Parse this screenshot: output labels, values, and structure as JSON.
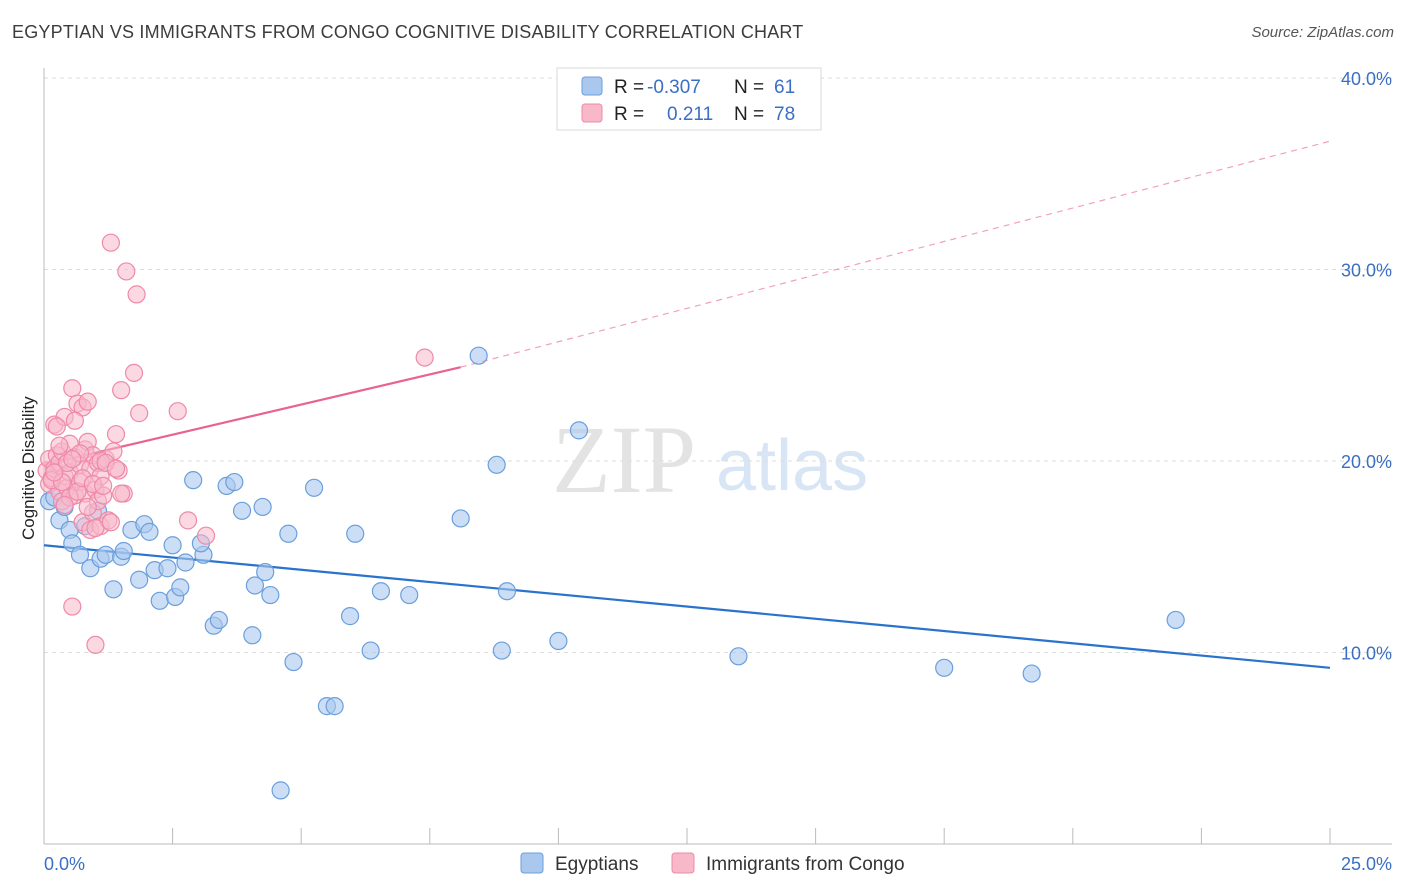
{
  "header": {
    "title": "EGYPTIAN VS IMMIGRANTS FROM CONGO COGNITIVE DISABILITY CORRELATION CHART",
    "source": "Source: ZipAtlas.com"
  },
  "watermark": {
    "zip": "ZIP",
    "atlas": "atlas"
  },
  "legend_box": {
    "rows": [
      {
        "r_label": "R =",
        "r_value": "-0.307",
        "n_label": "N =",
        "n_value": "61"
      },
      {
        "r_label": "R =",
        "r_value": "0.211",
        "n_label": "N =",
        "n_value": "78"
      }
    ]
  },
  "bottom_legend": {
    "items": [
      {
        "label": "Egyptians"
      },
      {
        "label": "Immigrants from Congo"
      }
    ]
  },
  "colors": {
    "blue_fill": "#aac8ee",
    "blue_stroke": "#6a9fdc",
    "blue_line": "#2a73cc",
    "pink_fill": "#f7b8ca",
    "pink_stroke": "#ee8aa8",
    "pink_line": "#e8638e",
    "grid": "#dddddd",
    "axis_label": "#3a6fc4"
  },
  "chart_data": {
    "type": "scatter",
    "title": "EGYPTIAN VS IMMIGRANTS FROM CONGO COGNITIVE DISABILITY CORRELATION CHART",
    "xlabel": "",
    "ylabel": "Cognitive Disability",
    "xlim": [
      0,
      25
    ],
    "ylim": [
      0,
      40
    ],
    "x_tick_labels": [
      "0.0%",
      "25.0%"
    ],
    "y_ticks": [
      10,
      20,
      30,
      40
    ],
    "y_tick_labels": [
      "10.0%",
      "20.0%",
      "30.0%",
      "40.0%"
    ],
    "grid": true,
    "legend_position": "top-center",
    "series": [
      {
        "name": "Egyptians",
        "color": "#6a9fdc",
        "R": -0.307,
        "N": 61,
        "trend": {
          "x": [
            0,
            25
          ],
          "y": [
            15.6,
            9.2
          ],
          "dashed_extension": null
        },
        "points": [
          [
            0.1,
            17.9
          ],
          [
            0.2,
            18.1
          ],
          [
            0.3,
            16.9
          ],
          [
            0.4,
            17.6
          ],
          [
            0.5,
            16.4
          ],
          [
            0.55,
            15.7
          ],
          [
            0.7,
            15.1
          ],
          [
            0.8,
            16.6
          ],
          [
            0.9,
            14.4
          ],
          [
            1.05,
            17.4
          ],
          [
            1.1,
            14.9
          ],
          [
            1.2,
            15.1
          ],
          [
            1.35,
            13.3
          ],
          [
            1.5,
            15.0
          ],
          [
            1.55,
            15.3
          ],
          [
            1.7,
            16.4
          ],
          [
            1.85,
            13.8
          ],
          [
            1.95,
            16.7
          ],
          [
            2.05,
            16.3
          ],
          [
            2.15,
            14.3
          ],
          [
            2.25,
            12.7
          ],
          [
            2.4,
            14.4
          ],
          [
            2.5,
            15.6
          ],
          [
            2.55,
            12.9
          ],
          [
            2.65,
            13.4
          ],
          [
            2.75,
            14.7
          ],
          [
            2.9,
            19.0
          ],
          [
            3.1,
            15.1
          ],
          [
            3.05,
            15.7
          ],
          [
            3.3,
            11.4
          ],
          [
            3.4,
            11.7
          ],
          [
            3.55,
            18.7
          ],
          [
            3.7,
            18.9
          ],
          [
            3.85,
            17.4
          ],
          [
            4.05,
            10.9
          ],
          [
            4.1,
            13.5
          ],
          [
            4.25,
            17.6
          ],
          [
            4.3,
            14.2
          ],
          [
            4.4,
            13.0
          ],
          [
            4.6,
            2.8
          ],
          [
            4.75,
            16.2
          ],
          [
            4.85,
            9.5
          ],
          [
            5.25,
            18.6
          ],
          [
            5.5,
            7.2
          ],
          [
            5.65,
            7.2
          ],
          [
            5.95,
            11.9
          ],
          [
            6.05,
            16.2
          ],
          [
            6.35,
            10.1
          ],
          [
            6.55,
            13.2
          ],
          [
            7.1,
            13.0
          ],
          [
            8.1,
            17.0
          ],
          [
            8.45,
            25.5
          ],
          [
            8.8,
            19.8
          ],
          [
            8.9,
            10.1
          ],
          [
            9.0,
            13.2
          ],
          [
            10.0,
            10.6
          ],
          [
            10.4,
            21.6
          ],
          [
            13.5,
            9.8
          ],
          [
            17.5,
            9.2
          ],
          [
            19.2,
            8.9
          ],
          [
            22.0,
            11.7
          ]
        ]
      },
      {
        "name": "Immigrants from Congo",
        "color": "#ee8aa8",
        "R": 0.211,
        "N": 78,
        "trend": {
          "x": [
            0,
            8.1
          ],
          "y": [
            19.8,
            24.9
          ],
          "dashed_extension": {
            "x": [
              8.1,
              25
            ],
            "y": [
              24.9,
              36.7
            ]
          }
        },
        "points": [
          [
            0.05,
            19.5
          ],
          [
            0.1,
            18.8
          ],
          [
            0.1,
            20.1
          ],
          [
            0.15,
            19.1
          ],
          [
            0.2,
            21.9
          ],
          [
            0.2,
            19.6
          ],
          [
            0.25,
            20.3
          ],
          [
            0.3,
            18.4
          ],
          [
            0.3,
            19.9
          ],
          [
            0.35,
            17.9
          ],
          [
            0.35,
            20.5
          ],
          [
            0.4,
            19.2
          ],
          [
            0.4,
            22.3
          ],
          [
            0.45,
            18.6
          ],
          [
            0.5,
            20.9
          ],
          [
            0.5,
            19.4
          ],
          [
            0.55,
            23.8
          ],
          [
            0.55,
            12.4
          ],
          [
            0.6,
            18.2
          ],
          [
            0.6,
            20.2
          ],
          [
            0.65,
            23.0
          ],
          [
            0.7,
            19.8
          ],
          [
            0.7,
            18.9
          ],
          [
            0.75,
            22.8
          ],
          [
            0.75,
            16.8
          ],
          [
            0.8,
            18.3
          ],
          [
            0.8,
            20.6
          ],
          [
            0.85,
            21.0
          ],
          [
            0.85,
            23.1
          ],
          [
            0.9,
            16.4
          ],
          [
            0.9,
            19.6
          ],
          [
            0.95,
            17.3
          ],
          [
            0.95,
            20.3
          ],
          [
            1.0,
            18.5
          ],
          [
            1.0,
            10.4
          ],
          [
            1.05,
            19.9
          ],
          [
            1.05,
            17.9
          ],
          [
            1.1,
            16.6
          ],
          [
            1.1,
            19.2
          ],
          [
            1.15,
            18.2
          ],
          [
            1.2,
            20.1
          ],
          [
            1.25,
            16.9
          ],
          [
            1.3,
            31.4
          ],
          [
            1.35,
            20.5
          ],
          [
            1.4,
            21.4
          ],
          [
            1.45,
            19.5
          ],
          [
            1.5,
            23.7
          ],
          [
            1.55,
            18.3
          ],
          [
            1.6,
            29.9
          ],
          [
            1.75,
            24.6
          ],
          [
            1.8,
            28.7
          ],
          [
            1.85,
            22.5
          ],
          [
            2.6,
            22.6
          ],
          [
            2.8,
            16.9
          ],
          [
            3.15,
            16.1
          ],
          [
            7.4,
            25.4
          ],
          [
            0.15,
            19.0
          ],
          [
            0.25,
            21.8
          ],
          [
            0.3,
            20.8
          ],
          [
            0.45,
            19.9
          ],
          [
            0.5,
            18.1
          ],
          [
            0.6,
            22.1
          ],
          [
            0.65,
            18.4
          ],
          [
            0.7,
            20.4
          ],
          [
            0.75,
            19.1
          ],
          [
            0.85,
            17.6
          ],
          [
            0.95,
            18.8
          ],
          [
            1.0,
            16.5
          ],
          [
            1.1,
            20.0
          ],
          [
            1.15,
            18.7
          ],
          [
            1.2,
            19.9
          ],
          [
            1.3,
            16.8
          ],
          [
            1.4,
            19.6
          ],
          [
            1.5,
            18.3
          ],
          [
            0.35,
            18.9
          ],
          [
            0.55,
            20.1
          ],
          [
            0.4,
            17.7
          ],
          [
            0.2,
            19.4
          ]
        ]
      }
    ]
  }
}
